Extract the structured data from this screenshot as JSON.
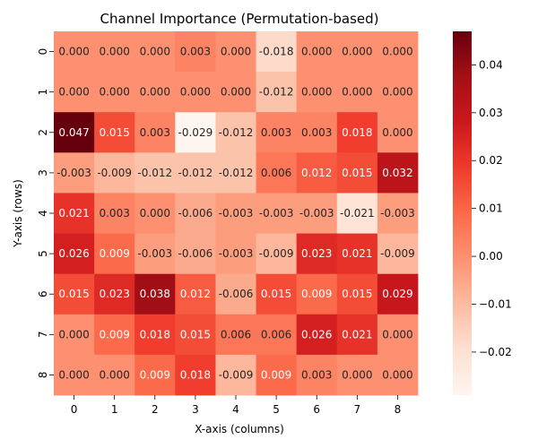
{
  "chart_data": {
    "type": "heatmap",
    "title": "Channel Importance (Permutation-based)",
    "xlabel": "X-axis (columns)",
    "ylabel": "Y-axis (rows)",
    "x_categories": [
      "0",
      "1",
      "2",
      "3",
      "4",
      "5",
      "6",
      "7",
      "8"
    ],
    "y_categories": [
      "0",
      "1",
      "2",
      "3",
      "4",
      "5",
      "6",
      "7",
      "8"
    ],
    "values": [
      [
        0.0,
        0.0,
        0.0,
        0.003,
        0.0,
        -0.018,
        0.0,
        0.0,
        0.0
      ],
      [
        0.0,
        0.0,
        0.0,
        0.0,
        0.0,
        -0.012,
        0.0,
        0.0,
        0.0
      ],
      [
        0.047,
        0.015,
        0.003,
        -0.029,
        -0.012,
        0.003,
        0.003,
        0.018,
        0.0
      ],
      [
        -0.003,
        -0.009,
        -0.012,
        -0.012,
        -0.012,
        0.006,
        0.012,
        0.015,
        0.032
      ],
      [
        0.021,
        0.003,
        0.0,
        -0.006,
        -0.003,
        -0.003,
        -0.003,
        -0.021,
        -0.003
      ],
      [
        0.026,
        0.009,
        -0.003,
        -0.006,
        -0.003,
        -0.009,
        0.023,
        0.021,
        -0.009
      ],
      [
        0.015,
        0.023,
        0.038,
        0.012,
        -0.006,
        0.015,
        0.009,
        0.015,
        0.029
      ],
      [
        0.0,
        0.009,
        0.018,
        0.015,
        0.006,
        0.006,
        0.026,
        0.021,
        0.0
      ],
      [
        0.0,
        0.0,
        0.009,
        0.018,
        -0.009,
        0.009,
        0.003,
        0.0,
        0.0
      ]
    ],
    "vmin": -0.029,
    "vmax": 0.047,
    "colormap": "Reds",
    "colorbar_ticks": [
      0.04,
      0.03,
      0.02,
      0.01,
      0.0,
      -0.01,
      -0.02
    ],
    "colorbar_tick_labels": [
      "0.04",
      "0.03",
      "0.02",
      "0.01",
      "0.00",
      "−0.01",
      "−0.02"
    ]
  }
}
